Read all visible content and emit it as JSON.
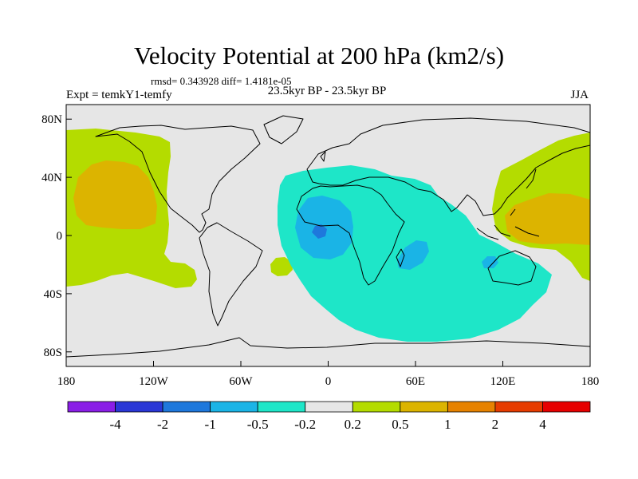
{
  "title": "Velocity Potential at 200 hPa (km2/s)",
  "stats": "rmsd= 0.343928 diff= 1.4181e-05",
  "experiment": "Expt = temkY1-temfy",
  "period": "23.5kyr BP - 23.5kyr BP",
  "season": "JJA",
  "map": {
    "lon_range": [
      -180,
      180
    ],
    "lat_range": [
      -90,
      90
    ],
    "background_color": "#e6e6e6",
    "lat_ticks": [
      {
        "value": 80,
        "label": "80N"
      },
      {
        "value": 40,
        "label": "40N"
      },
      {
        "value": 0,
        "label": "0"
      },
      {
        "value": -40,
        "label": "40S"
      },
      {
        "value": -80,
        "label": "80S"
      }
    ],
    "lon_ticks": [
      {
        "value": -180,
        "label": "180"
      },
      {
        "value": -120,
        "label": "120W"
      },
      {
        "value": -60,
        "label": "60W"
      },
      {
        "value": 0,
        "label": "0"
      },
      {
        "value": 60,
        "label": "60E"
      },
      {
        "value": 120,
        "label": "120E"
      },
      {
        "value": 180,
        "label": "180"
      }
    ]
  },
  "colorbar": {
    "colors": [
      "#8a1ee6",
      "#2a37d6",
      "#1e78dc",
      "#1ab4e6",
      "#1ee6c8",
      "#e6e6e6",
      "#b4dc00",
      "#dcb400",
      "#e68200",
      "#e63c00",
      "#e60000"
    ],
    "labels": [
      "-4",
      "-2",
      "-1",
      "-0.5",
      "-0.2",
      "0.2",
      "0.5",
      "1",
      "2",
      "4"
    ]
  }
}
